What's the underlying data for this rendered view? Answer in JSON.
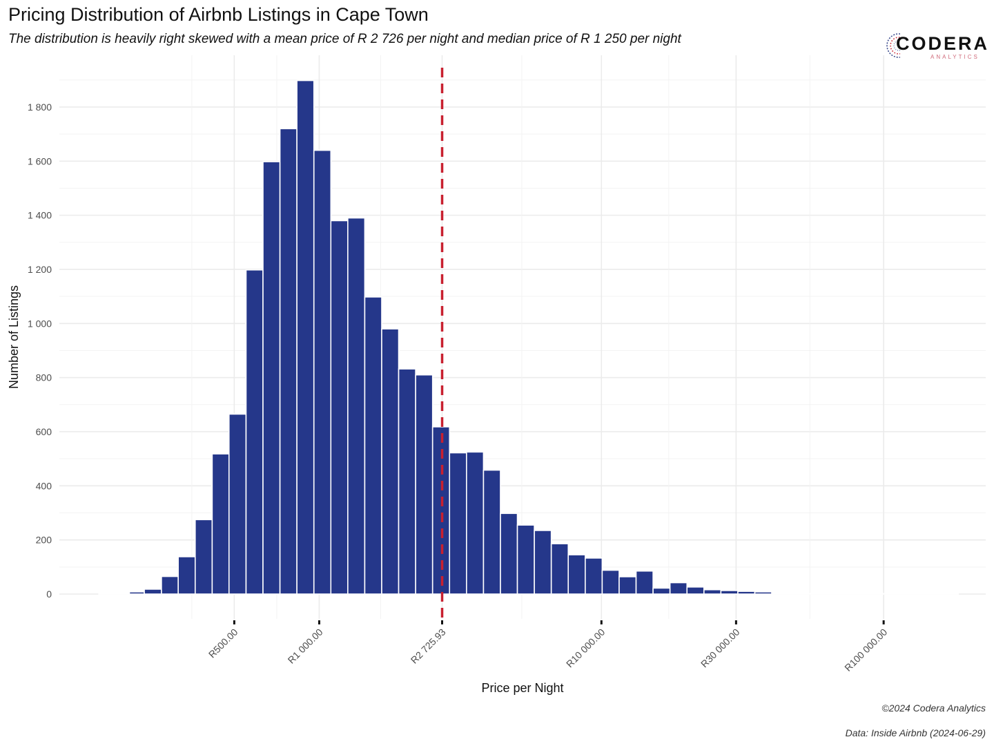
{
  "header": {
    "title": "Pricing Distribution of Airbnb Listings in Cape Town",
    "subtitle": "The distribution is heavily right skewed with a mean price of R 2 726 per night and median price of R 1 250 per night"
  },
  "logo": {
    "name": "CODERA",
    "tagline": "ANALYTICS"
  },
  "footer": {
    "copyright": "©2024 Codera Analytics",
    "source": "Data: Inside Airbnb (2024-06-29)"
  },
  "chart_data": {
    "type": "bar",
    "xlabel": "Price per Night",
    "ylabel": "Number of Listings",
    "x_scale": "log10",
    "xlim": [
      120,
      230000
    ],
    "ylim": [
      0,
      1900
    ],
    "bar_color": "#25378a",
    "bars": [
      {
        "from": 165.5,
        "to": 212.5,
        "value": 2
      },
      {
        "from": 212.5,
        "to": 240.0,
        "value": 8
      },
      {
        "from": 240.0,
        "to": 276.0,
        "value": 18
      },
      {
        "from": 276.0,
        "to": 316.5,
        "value": 65
      },
      {
        "from": 316.5,
        "to": 363.5,
        "value": 138
      },
      {
        "from": 363.5,
        "to": 417.5,
        "value": 275
      },
      {
        "from": 417.5,
        "to": 479.0,
        "value": 518
      },
      {
        "from": 479.0,
        "to": 550.5,
        "value": 665
      },
      {
        "from": 550.5,
        "to": 632.0,
        "value": 1198
      },
      {
        "from": 632.0,
        "to": 726.0,
        "value": 1598
      },
      {
        "from": 726.0,
        "to": 833.5,
        "value": 1720
      },
      {
        "from": 833.5,
        "to": 957.5,
        "value": 1898
      },
      {
        "from": 957.5,
        "to": 1099.5,
        "value": 1640
      },
      {
        "from": 1099.5,
        "to": 1262.5,
        "value": 1380
      },
      {
        "from": 1262.5,
        "to": 1450.0,
        "value": 1390
      },
      {
        "from": 1450.0,
        "to": 1665.0,
        "value": 1098
      },
      {
        "from": 1665.0,
        "to": 1912.0,
        "value": 980
      },
      {
        "from": 1912.0,
        "to": 2196.0,
        "value": 832
      },
      {
        "from": 2196.0,
        "to": 2522.0,
        "value": 810
      },
      {
        "from": 2522.0,
        "to": 2896.0,
        "value": 618
      },
      {
        "from": 2896.0,
        "to": 3326.0,
        "value": 522
      },
      {
        "from": 3326.0,
        "to": 3820.0,
        "value": 525
      },
      {
        "from": 3820.0,
        "to": 4386.0,
        "value": 458
      },
      {
        "from": 4386.0,
        "to": 5037.0,
        "value": 298
      },
      {
        "from": 5037.0,
        "to": 5785.0,
        "value": 255
      },
      {
        "from": 5785.0,
        "to": 6643.0,
        "value": 235
      },
      {
        "from": 6643.0,
        "to": 7629.0,
        "value": 186
      },
      {
        "from": 7629.0,
        "to": 8762.0,
        "value": 145
      },
      {
        "from": 8762.0,
        "to": 10062.0,
        "value": 133
      },
      {
        "from": 10062.0,
        "to": 11555.0,
        "value": 88
      },
      {
        "from": 11555.0,
        "to": 13270.0,
        "value": 64
      },
      {
        "from": 13270.0,
        "to": 15240.0,
        "value": 85
      },
      {
        "from": 15240.0,
        "to": 17500.0,
        "value": 22
      },
      {
        "from": 17500.0,
        "to": 20100.0,
        "value": 42
      },
      {
        "from": 20100.0,
        "to": 23080.0,
        "value": 26
      },
      {
        "from": 23080.0,
        "to": 26500.0,
        "value": 16
      },
      {
        "from": 26500.0,
        "to": 30440.0,
        "value": 13
      },
      {
        "from": 30440.0,
        "to": 34960.0,
        "value": 10
      },
      {
        "from": 34960.0,
        "to": 40140.0,
        "value": 8
      },
      {
        "from": 40140.0,
        "to": 46100.0,
        "value": 4
      },
      {
        "from": 46100.0,
        "to": 52940.0,
        "value": 2
      },
      {
        "from": 52940.0,
        "to": 60800.0,
        "value": 1
      },
      {
        "from": 60800.0,
        "to": 69820.0,
        "value": 1
      },
      {
        "from": 69820.0,
        "to": 80180.0,
        "value": 1
      },
      {
        "from": 80180.0,
        "to": 92080.0,
        "value": 1
      },
      {
        "from": 92080.0,
        "to": 105740.0,
        "value": 1
      },
      {
        "from": 105740.0,
        "to": 121430.0,
        "value": 1
      },
      {
        "from": 121430.0,
        "to": 139450.0,
        "value": 1
      },
      {
        "from": 139450.0,
        "to": 160150.0,
        "value": 1
      },
      {
        "from": 160150.0,
        "to": 183900.0,
        "value": 1
      }
    ],
    "y_ticks": [
      {
        "value": 0,
        "label": "0"
      },
      {
        "value": 200,
        "label": "200"
      },
      {
        "value": 400,
        "label": "400"
      },
      {
        "value": 600,
        "label": "600"
      },
      {
        "value": 800,
        "label": "800"
      },
      {
        "value": 1000,
        "label": "1 000"
      },
      {
        "value": 1200,
        "label": "1 200"
      },
      {
        "value": 1400,
        "label": "1 400"
      },
      {
        "value": 1600,
        "label": "1 600"
      },
      {
        "value": 1800,
        "label": "1 800"
      }
    ],
    "x_ticks": [
      {
        "value": 500,
        "label": "R500.00"
      },
      {
        "value": 1000,
        "label": "R1 000.00"
      },
      {
        "value": 2725.93,
        "label": "R2 725.93"
      },
      {
        "value": 10000,
        "label": "R10 000.00"
      },
      {
        "value": 30000,
        "label": "R30 000.00"
      },
      {
        "value": 100000,
        "label": "R100 000.00"
      }
    ],
    "mean_line": {
      "value": 2725.93,
      "color": "#c8202f",
      "style": "dashed"
    },
    "grid": true,
    "legend": "none"
  }
}
